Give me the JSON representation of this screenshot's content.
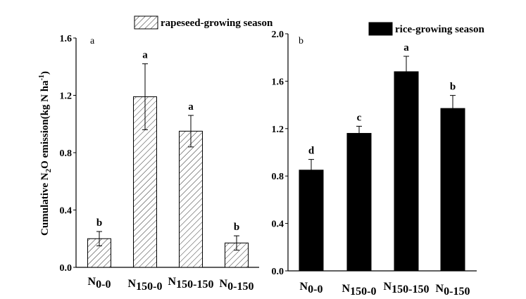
{
  "chart_data": [
    {
      "type": "bar",
      "panel_label": "a",
      "legend": "rapeseed-growing season",
      "legend_placement": "top",
      "fill": "hatched",
      "ylabel": "Cumulative N2O emission(kg N ha-1)",
      "ylabel_parts": {
        "pre": "Cumulative N",
        "sub": "2",
        "mid": "O emission(kg N ha",
        "sup": "-1",
        "post": ")"
      },
      "ylim": [
        0,
        1.6
      ],
      "yticks": [
        "0.0",
        "0.4",
        "0.8",
        "1.2",
        "1.6"
      ],
      "categories": [
        {
          "base": "N",
          "sub": "0-0"
        },
        {
          "base": "N",
          "sub": "150-0"
        },
        {
          "base": "N",
          "sub": "150-150"
        },
        {
          "base": "N",
          "sub": "0-150"
        }
      ],
      "values": [
        0.2,
        1.19,
        0.95,
        0.17
      ],
      "errors": [
        0.05,
        0.23,
        0.11,
        0.05
      ],
      "error_style": "both",
      "letters": [
        "b",
        "a",
        "a",
        "b"
      ]
    },
    {
      "type": "bar",
      "panel_label": "b",
      "legend": "rice-growing season",
      "legend_placement": "top",
      "fill": "#000000",
      "ylim": [
        0,
        2.0
      ],
      "yticks": [
        "0.0",
        "0.4",
        "0.8",
        "1.2",
        "1.6",
        "2.0"
      ],
      "categories": [
        {
          "base": "N",
          "sub": "0-0"
        },
        {
          "base": "N",
          "sub": "150-0"
        },
        {
          "base": "N",
          "sub": "150-150"
        },
        {
          "base": "N",
          "sub": "0-150"
        }
      ],
      "values": [
        0.85,
        1.16,
        1.68,
        1.37
      ],
      "errors": [
        0.09,
        0.06,
        0.13,
        0.11
      ],
      "error_style": "upper",
      "letters": [
        "d",
        "c",
        "a",
        "b"
      ]
    }
  ]
}
